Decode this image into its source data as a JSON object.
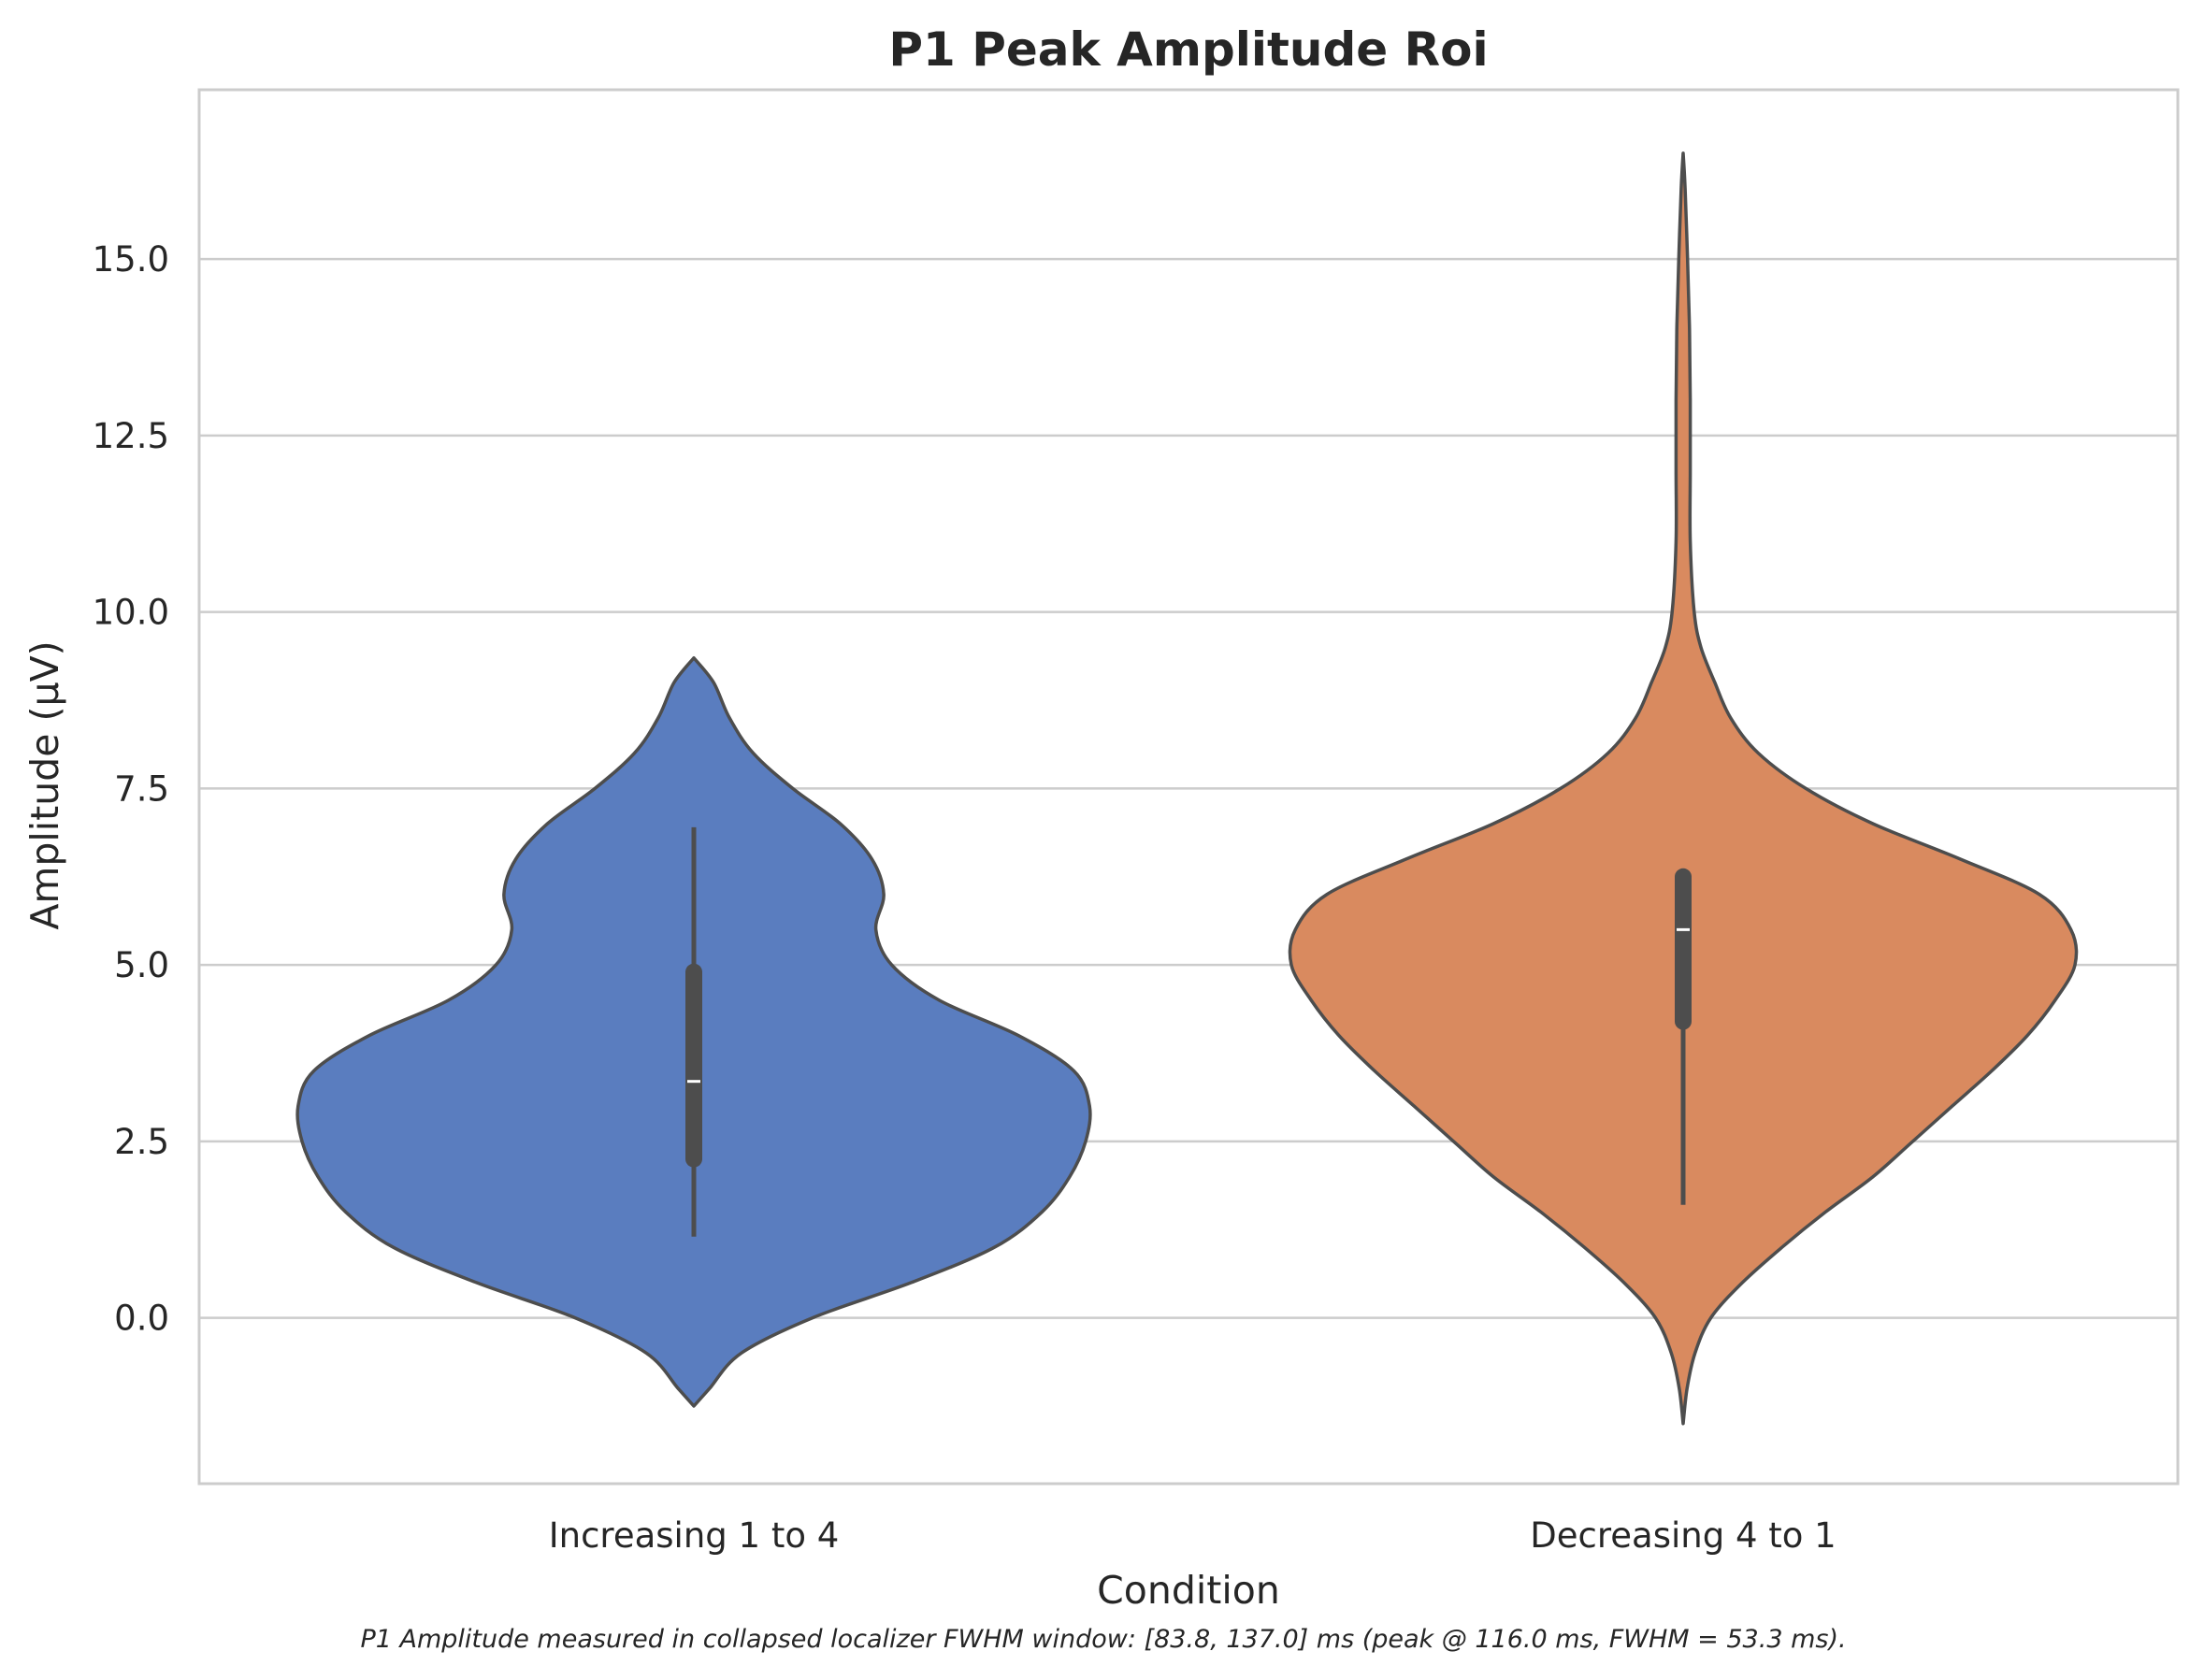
{
  "chart_data": {
    "type": "violin",
    "title": "P1 Peak Amplitude Roi",
    "xlabel": "Condition",
    "ylabel": "Amplitude (μV)",
    "footnote": "P1 Amplitude measured in collapsed localizer FWHM window: [83.8, 137.0] ms (peak @ 116.0 ms, FWHM = 53.3 ms).",
    "categories": [
      "Increasing 1 to 4",
      "Decreasing 4 to 1"
    ],
    "ylim": [
      -2.35,
      17.4
    ],
    "yticks": [
      0.0,
      2.5,
      5.0,
      7.5,
      10.0,
      12.5,
      15.0
    ],
    "ytick_labels": [
      "0.0",
      "2.5",
      "5.0",
      "7.5",
      "10.0",
      "12.5",
      "15.0"
    ],
    "grid": true,
    "series": [
      {
        "category": "Increasing 1 to 4",
        "color": "#5a7dbf",
        "range": [
          -1.25,
          9.35
        ],
        "whisker": [
          1.15,
          6.95
        ],
        "q1": 2.25,
        "median": 3.35,
        "q3": 4.9,
        "density": [
          [
            -1.25,
            0.0
          ],
          [
            -1.0,
            0.04
          ],
          [
            -0.5,
            0.12
          ],
          [
            0.0,
            0.3
          ],
          [
            0.5,
            0.55
          ],
          [
            1.0,
            0.76
          ],
          [
            1.5,
            0.88
          ],
          [
            2.0,
            0.95
          ],
          [
            2.5,
            0.99
          ],
          [
            3.0,
            1.0
          ],
          [
            3.5,
            0.96
          ],
          [
            4.0,
            0.82
          ],
          [
            4.5,
            0.62
          ],
          [
            5.0,
            0.5
          ],
          [
            5.5,
            0.46
          ],
          [
            6.0,
            0.48
          ],
          [
            6.5,
            0.45
          ],
          [
            7.0,
            0.37
          ],
          [
            7.5,
            0.25
          ],
          [
            8.0,
            0.15
          ],
          [
            8.5,
            0.09
          ],
          [
            9.0,
            0.05
          ],
          [
            9.35,
            0.0
          ]
        ]
      },
      {
        "category": "Decreasing 4 to 1",
        "color": "#d98a5f",
        "range": [
          -1.5,
          16.5
        ],
        "whisker": [
          1.6,
          6.3
        ],
        "q1": 4.2,
        "median": 5.5,
        "q3": 6.25,
        "density": [
          [
            -1.5,
            0.0
          ],
          [
            -1.0,
            0.01
          ],
          [
            -0.5,
            0.03
          ],
          [
            0.0,
            0.07
          ],
          [
            0.5,
            0.15
          ],
          [
            1.0,
            0.25
          ],
          [
            1.5,
            0.36
          ],
          [
            2.0,
            0.48
          ],
          [
            2.5,
            0.58
          ],
          [
            3.0,
            0.68
          ],
          [
            3.5,
            0.78
          ],
          [
            4.0,
            0.87
          ],
          [
            4.5,
            0.94
          ],
          [
            5.0,
            0.99
          ],
          [
            5.5,
            0.98
          ],
          [
            6.0,
            0.9
          ],
          [
            6.5,
            0.7
          ],
          [
            7.0,
            0.48
          ],
          [
            7.5,
            0.31
          ],
          [
            8.0,
            0.19
          ],
          [
            8.5,
            0.12
          ],
          [
            9.0,
            0.08
          ],
          [
            9.5,
            0.045
          ],
          [
            10.0,
            0.028
          ],
          [
            11.0,
            0.018
          ],
          [
            12.0,
            0.018
          ],
          [
            13.0,
            0.018
          ],
          [
            14.0,
            0.016
          ],
          [
            15.0,
            0.011
          ],
          [
            16.0,
            0.005
          ],
          [
            16.5,
            0.0
          ]
        ]
      }
    ]
  }
}
